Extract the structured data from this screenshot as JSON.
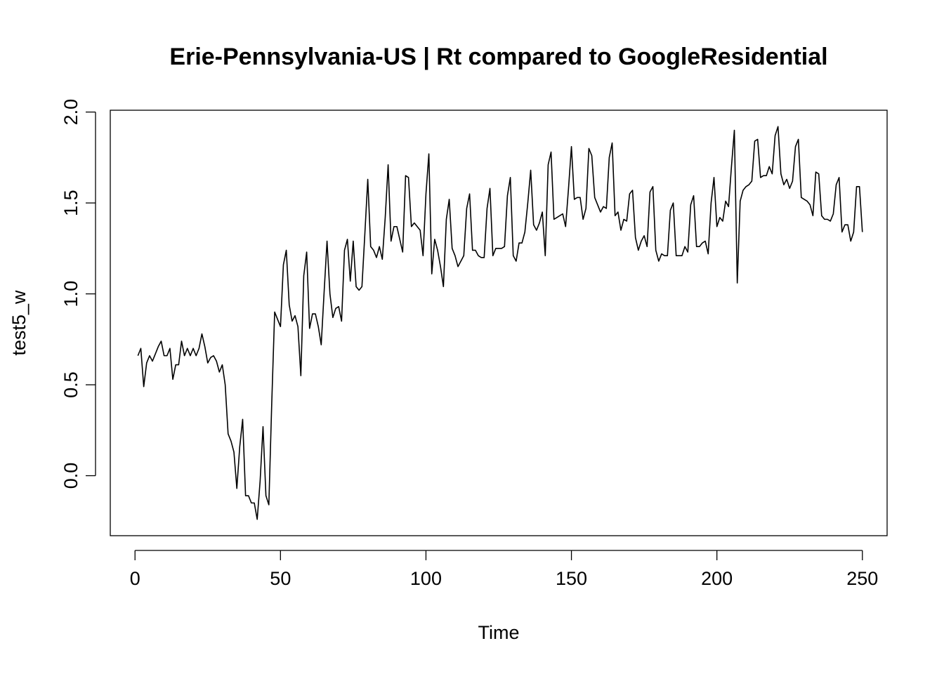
{
  "chart_data": {
    "type": "line",
    "title": "Erie-Pennsylvania-US | Rt compared to GoogleResidential",
    "xlabel": "Time",
    "ylabel": "test5_w",
    "xlim": [
      -8.5,
      258.5
    ],
    "ylim": [
      -0.33,
      2.01
    ],
    "x_ticks": [
      0,
      50,
      100,
      150,
      200,
      250
    ],
    "y_ticks": [
      0.0,
      0.5,
      1.0,
      1.5,
      2.0
    ],
    "x_tick_labels": [
      "0",
      "50",
      "100",
      "150",
      "200",
      "250"
    ],
    "y_tick_labels": [
      "0.0",
      "0.5",
      "1.0",
      "1.5",
      "2.0"
    ],
    "grid": false,
    "legend": "none",
    "series": [
      {
        "x_start": 1,
        "values": [
          0.66,
          0.7,
          0.49,
          0.62,
          0.66,
          0.63,
          0.67,
          0.71,
          0.74,
          0.66,
          0.66,
          0.7,
          0.53,
          0.61,
          0.61,
          0.74,
          0.66,
          0.7,
          0.66,
          0.7,
          0.66,
          0.7,
          0.78,
          0.71,
          0.62,
          0.65,
          0.66,
          0.63,
          0.57,
          0.61,
          0.5,
          0.23,
          0.19,
          0.13,
          -0.07,
          0.16,
          0.31,
          -0.11,
          -0.11,
          -0.15,
          -0.15,
          -0.24,
          -0.03,
          0.27,
          -0.11,
          -0.16,
          0.4,
          0.9,
          0.86,
          0.82,
          1.16,
          1.24,
          0.94,
          0.85,
          0.88,
          0.82,
          0.55,
          1.1,
          1.23,
          0.81,
          0.89,
          0.89,
          0.82,
          0.72,
          1.01,
          1.29,
          1.0,
          0.87,
          0.92,
          0.93,
          0.85,
          1.24,
          1.3,
          1.07,
          1.29,
          1.04,
          1.02,
          1.04,
          1.33,
          1.63,
          1.26,
          1.24,
          1.2,
          1.26,
          1.19,
          1.42,
          1.71,
          1.29,
          1.37,
          1.37,
          1.3,
          1.23,
          1.65,
          1.64,
          1.37,
          1.39,
          1.37,
          1.35,
          1.21,
          1.55,
          1.77,
          1.11,
          1.3,
          1.24,
          1.15,
          1.04,
          1.41,
          1.52,
          1.25,
          1.21,
          1.15,
          1.18,
          1.21,
          1.47,
          1.55,
          1.24,
          1.24,
          1.21,
          1.2,
          1.2,
          1.47,
          1.58,
          1.21,
          1.25,
          1.25,
          1.25,
          1.26,
          1.54,
          1.64,
          1.21,
          1.18,
          1.28,
          1.28,
          1.34,
          1.5,
          1.68,
          1.38,
          1.35,
          1.39,
          1.45,
          1.21,
          1.71,
          1.78,
          1.41,
          1.42,
          1.43,
          1.44,
          1.37,
          1.58,
          1.81,
          1.52,
          1.53,
          1.53,
          1.41,
          1.47,
          1.8,
          1.76,
          1.53,
          1.49,
          1.45,
          1.48,
          1.47,
          1.75,
          1.83,
          1.43,
          1.45,
          1.35,
          1.41,
          1.4,
          1.55,
          1.57,
          1.31,
          1.24,
          1.29,
          1.32,
          1.26,
          1.56,
          1.59,
          1.24,
          1.18,
          1.22,
          1.21,
          1.21,
          1.46,
          1.5,
          1.21,
          1.21,
          1.21,
          1.26,
          1.23,
          1.49,
          1.54,
          1.26,
          1.26,
          1.28,
          1.29,
          1.22,
          1.5,
          1.64,
          1.37,
          1.42,
          1.4,
          1.51,
          1.48,
          1.7,
          1.9,
          1.06,
          1.51,
          1.57,
          1.59,
          1.6,
          1.62,
          1.84,
          1.85,
          1.64,
          1.65,
          1.65,
          1.7,
          1.66,
          1.87,
          1.92,
          1.66,
          1.6,
          1.63,
          1.58,
          1.62,
          1.81,
          1.85,
          1.53,
          1.52,
          1.51,
          1.49,
          1.43,
          1.67,
          1.66,
          1.43,
          1.41,
          1.41,
          1.4,
          1.44,
          1.6,
          1.64,
          1.34,
          1.38,
          1.38,
          1.29,
          1.34,
          1.59,
          1.59,
          1.34
        ]
      }
    ]
  }
}
